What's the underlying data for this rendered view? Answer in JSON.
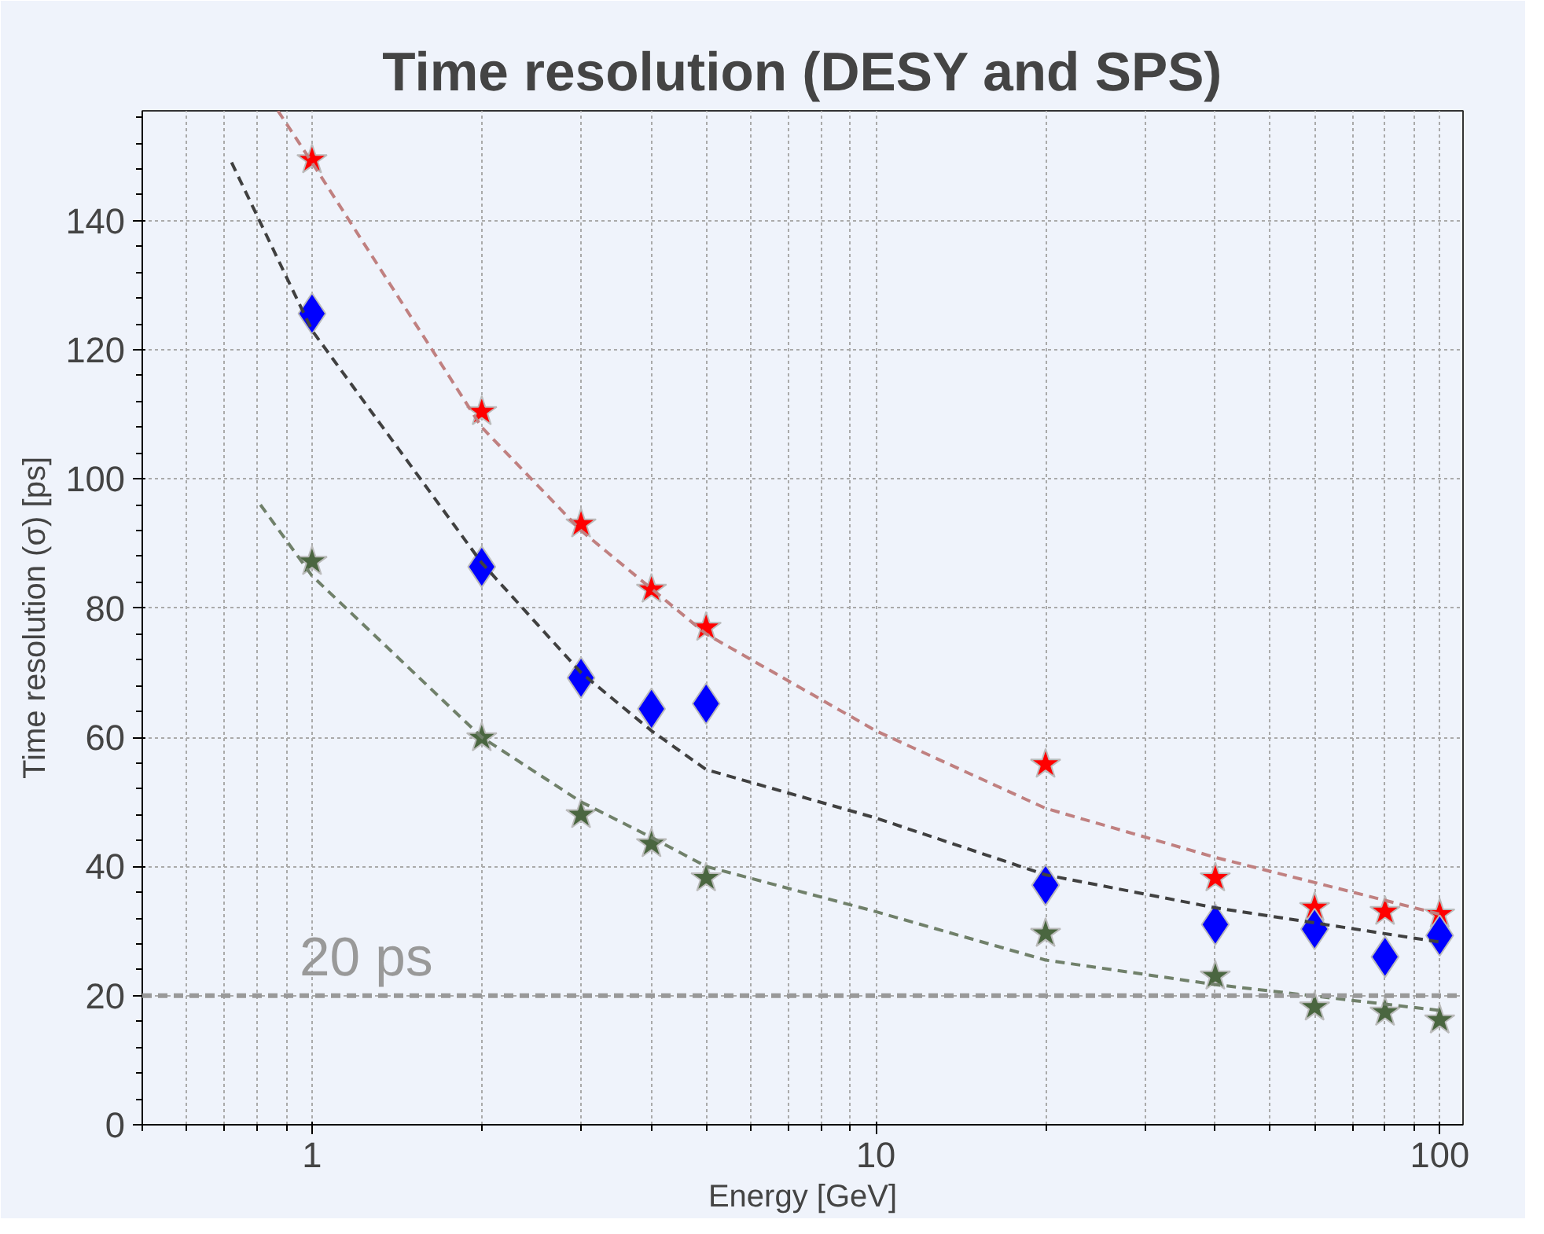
{
  "chart_data": {
    "type": "scatter",
    "title": "Time resolution (DESY and SPS)",
    "xlabel": "Energy [GeV]",
    "ylabel": "Time resolution (σ) [ps]",
    "log": "x",
    "xlim": [
      0.5,
      110
    ],
    "ylim": [
      0,
      157
    ],
    "xticks": [
      1,
      10,
      100
    ],
    "yticks": [
      0,
      20,
      40,
      60,
      80,
      100,
      120,
      140
    ],
    "grid": true,
    "series": [
      {
        "type": "line",
        "color": "#c08080",
        "line_style": "dashed",
        "marker": "none",
        "x": [
          0.87,
          1,
          2,
          3,
          4,
          5,
          10,
          20,
          40,
          100
        ],
        "values": [
          157,
          149,
          108,
          92,
          83,
          76,
          61,
          49,
          41.4,
          32.6
        ]
      },
      {
        "type": "line",
        "color": "#404040",
        "line_style": "dashed",
        "marker": "none",
        "x": [
          0.72,
          1,
          2,
          3,
          4,
          5,
          10,
          20,
          40,
          100
        ],
        "values": [
          149,
          123,
          87,
          70,
          61,
          55,
          47.5,
          38.7,
          33.6,
          28.3
        ]
      },
      {
        "type": "line",
        "color": "#70806a",
        "line_style": "dashed",
        "marker": "none",
        "x": [
          0.81,
          1,
          2,
          3,
          4,
          5,
          10,
          20,
          40,
          100
        ],
        "values": [
          96,
          85,
          60,
          50,
          44.5,
          40,
          33,
          25.5,
          21.7,
          17.7
        ]
      },
      {
        "color": "#ff0000",
        "marker": "star",
        "x": [
          1,
          2,
          3,
          4,
          5,
          20,
          40,
          60,
          80,
          100
        ],
        "values": [
          149.4,
          110.4,
          93,
          82.9,
          77,
          55.8,
          38.2,
          33.6,
          33,
          32.6
        ]
      },
      {
        "color": "#0000ff",
        "marker": "diamond",
        "x": [
          1,
          2,
          3,
          4,
          5,
          20,
          40,
          60,
          80,
          100
        ],
        "values": [
          125.6,
          86.4,
          69.2,
          64.4,
          65.2,
          37.1,
          31,
          30.3,
          26,
          29.3
        ]
      },
      {
        "color": "#4a6640",
        "marker": "star",
        "x": [
          1,
          2,
          3,
          4,
          5,
          20,
          40,
          60,
          80,
          100
        ],
        "values": [
          87.2,
          59.9,
          48,
          43.5,
          38.2,
          29.6,
          23,
          18.2,
          17.4,
          16.2
        ]
      }
    ],
    "ref_lines": [
      {
        "axis": "y",
        "value": 20,
        "label": "20 ps",
        "color": "#999999",
        "line_style": "dashed"
      }
    ]
  }
}
